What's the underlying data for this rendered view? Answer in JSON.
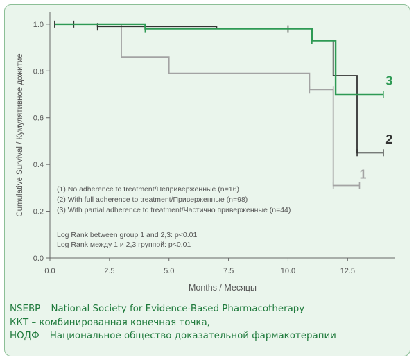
{
  "chart_data": {
    "type": "line",
    "subtype": "kaplan-meier step",
    "xlabel": "Months / Месяцы",
    "ylabel": "Cumulative Survival / Кумулятивное дожитие",
    "xlim": [
      0,
      14.5
    ],
    "ylim": [
      0,
      1.05
    ],
    "xticks": [
      "0.0",
      "2.5",
      "5.0",
      "7.5",
      "10.0",
      "12.5"
    ],
    "yticks": [
      "0.0",
      "0.2",
      "0.4",
      "0.6",
      "0.8",
      "1.0"
    ],
    "grid": false,
    "series": [
      {
        "name": "1",
        "color": "#a3a3a3",
        "steps": [
          [
            0.2,
            1.0
          ],
          [
            3.0,
            1.0
          ],
          [
            3.0,
            0.86
          ],
          [
            5.0,
            0.86
          ],
          [
            5.0,
            0.79
          ],
          [
            10.9,
            0.79
          ],
          [
            10.9,
            0.72
          ],
          [
            11.9,
            0.72
          ],
          [
            11.9,
            0.31
          ],
          [
            13.0,
            0.31
          ]
        ],
        "censor": [
          [
            10.9,
            0.72
          ],
          [
            11.9,
            0.72
          ],
          [
            11.9,
            0.31
          ],
          [
            13.0,
            0.31
          ]
        ]
      },
      {
        "name": "2",
        "color": "#333333",
        "steps": [
          [
            0.2,
            1.0
          ],
          [
            1.0,
            1.0
          ],
          [
            2.0,
            1.0
          ],
          [
            2.0,
            0.99
          ],
          [
            7.0,
            0.99
          ],
          [
            7.0,
            0.98
          ],
          [
            11.0,
            0.98
          ],
          [
            11.0,
            0.93
          ],
          [
            11.9,
            0.93
          ],
          [
            11.9,
            0.78
          ],
          [
            12.9,
            0.78
          ],
          [
            12.9,
            0.45
          ],
          [
            14.0,
            0.45
          ]
        ],
        "censor": [
          [
            0.2,
            1.0
          ],
          [
            1.0,
            1.0
          ],
          [
            2.0,
            0.99
          ],
          [
            10.0,
            0.98
          ],
          [
            11.0,
            0.93
          ],
          [
            12.9,
            0.45
          ],
          [
            14.0,
            0.45
          ]
        ]
      },
      {
        "name": "3",
        "color": "#2e9a54",
        "steps": [
          [
            0.2,
            1.0
          ],
          [
            4.0,
            1.0
          ],
          [
            4.0,
            0.98
          ],
          [
            11.0,
            0.98
          ],
          [
            11.0,
            0.93
          ],
          [
            12.0,
            0.93
          ],
          [
            12.0,
            0.7
          ],
          [
            14.0,
            0.7
          ]
        ],
        "censor": [
          [
            4.0,
            0.98
          ],
          [
            11.0,
            0.93
          ],
          [
            14.0,
            0.7
          ]
        ]
      }
    ],
    "series_labels": [
      {
        "text": "1",
        "x": 13.0,
        "y": 0.34,
        "color": "#a3a3a3"
      },
      {
        "text": "2",
        "x": 14.1,
        "y": 0.49,
        "color": "#333333"
      },
      {
        "text": "3",
        "x": 14.1,
        "y": 0.74,
        "color": "#2e9a54"
      }
    ],
    "legend": [
      "(1) No adherence to treatment/Неприверженные (n=16)",
      "(2) With full adherence to treatment/Приверженные (n=98)",
      "(3) With partial adherence to treatment/Частично приверженные (n=44)"
    ],
    "legend_position": "bottom-left",
    "annotation": [
      "Log Rank between group 1 and 2,3: p<0.01",
      "Log Rank между 1 и 2,3 группой: p<0,01"
    ]
  },
  "footer": {
    "line1": "NSEBP – National Society for Evidence-Based Pharmacotherapy",
    "line2": "ККТ – комбинированная конечная точка,",
    "line3": "НОДФ – Национальное общество доказательной фармакотерапии"
  }
}
